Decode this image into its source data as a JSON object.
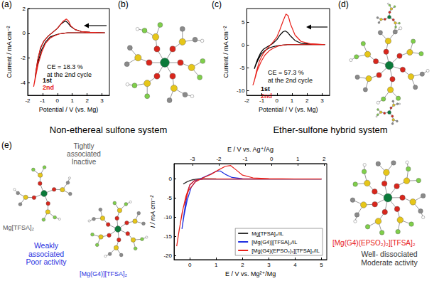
{
  "chart_data": [
    {
      "label": "(a)",
      "type": "line",
      "title": "Non-ethereal sulfone system",
      "x_label": "Potential / V (vs. Mg)",
      "y_label": "Current / mA cm⁻²",
      "xlim": [
        -2,
        3.5
      ],
      "xticks": [
        -2,
        -1,
        0,
        1,
        2,
        3
      ],
      "ylim": [
        -5,
        2
      ],
      "yticks": [
        -4,
        -2,
        0,
        2
      ],
      "grid": false,
      "annotations": [
        {
          "text": "CE = 18.3 %\nat the 2nd cycle",
          "color": "#000000"
        }
      ],
      "series": [
        {
          "name": "1st",
          "color": "#000000",
          "x": [
            3.2,
            2.5,
            2,
            1.5,
            1,
            0.7,
            0.4,
            0.1,
            -0.2,
            -0.5,
            -0.8,
            -1.05,
            -1.25,
            -1.4,
            -1.5,
            -1.45,
            -1.3,
            -1.1,
            -0.9,
            -0.6,
            -0.3,
            0,
            0.2,
            0.4,
            0.55,
            0.7,
            0.9,
            1.2,
            1.6,
            2.2,
            3.2
          ],
          "values": [
            0.05,
            0.05,
            0.05,
            0.05,
            0.05,
            0.05,
            0,
            -0.05,
            -0.15,
            -0.3,
            -0.7,
            -1.3,
            -2.1,
            -2.9,
            -3.6,
            -3.1,
            -2.0,
            -1.1,
            -0.6,
            -0.2,
            0.1,
            0.4,
            0.7,
            0.9,
            1.0,
            0.85,
            0.55,
            0.3,
            0.15,
            0.08,
            0.05
          ]
        },
        {
          "name": "2nd",
          "color": "#e8201a",
          "x": [
            3.2,
            2.5,
            2,
            1.5,
            1,
            0.7,
            0.4,
            0.1,
            -0.2,
            -0.5,
            -0.8,
            -1.05,
            -1.3,
            -1.45,
            -1.6,
            -1.5,
            -1.35,
            -1.15,
            -0.9,
            -0.6,
            -0.3,
            0,
            0.2,
            0.4,
            0.6,
            0.75,
            0.9,
            1.2,
            1.6,
            2.2,
            3.2
          ],
          "values": [
            0.05,
            0.05,
            0.05,
            0.05,
            0.05,
            0.05,
            0,
            -0.05,
            -0.2,
            -0.4,
            -0.8,
            -1.5,
            -2.5,
            -3.4,
            -4.3,
            -3.6,
            -2.3,
            -1.2,
            -0.6,
            -0.2,
            0.1,
            0.4,
            0.7,
            1.0,
            1.15,
            1.0,
            0.6,
            0.3,
            0.15,
            0.08,
            0.05
          ]
        }
      ]
    },
    {
      "label": "(c)",
      "type": "line",
      "title": "Ether-sulfone hybrid system",
      "x_label": "Potential / V (vs. Mg)",
      "y_label": "Current / mA cm⁻²",
      "xlim": [
        -2,
        3.5
      ],
      "xticks": [
        -2,
        -1,
        0,
        1,
        2,
        3
      ],
      "ylim": [
        -11,
        8
      ],
      "yticks": [
        -10,
        -5,
        0,
        5
      ],
      "grid": false,
      "annotations": [
        {
          "text": "CE = 57.3 %\nat the 2nd cycle",
          "color": "#000000"
        }
      ],
      "series": [
        {
          "name": "1st",
          "color": "#000000",
          "x": [
            3.2,
            2.5,
            2,
            1.5,
            1,
            0.7,
            0.4,
            0.1,
            -0.2,
            -0.5,
            -0.8,
            -1.05,
            -1.25,
            -1.4,
            -1.5,
            -1.45,
            -1.3,
            -1.1,
            -0.9,
            -0.6,
            -0.3,
            0,
            0.2,
            0.4,
            0.55,
            0.7,
            0.9,
            1.2,
            1.6,
            2.2,
            3.2
          ],
          "values": [
            0.1,
            0.1,
            0.1,
            0.1,
            0.1,
            0.1,
            0,
            -0.1,
            -0.3,
            -0.6,
            -1.2,
            -2.0,
            -3.2,
            -4.3,
            -5.2,
            -4.6,
            -3.2,
            -1.8,
            -0.9,
            -0.3,
            0.3,
            1.2,
            2.2,
            2.9,
            3.1,
            2.8,
            2.0,
            1.0,
            0.4,
            0.2,
            0.1
          ]
        },
        {
          "name": "2nd",
          "color": "#e8201a",
          "x": [
            3.2,
            2.5,
            2,
            1.5,
            1,
            0.7,
            0.4,
            0.1,
            -0.2,
            -0.5,
            -0.8,
            -1.05,
            -1.3,
            -1.45,
            -1.6,
            -1.5,
            -1.35,
            -1.15,
            -0.9,
            -0.6,
            -0.3,
            0,
            0.2,
            0.4,
            0.6,
            0.75,
            0.9,
            1.2,
            1.6,
            2.2,
            3.2
          ],
          "values": [
            0.1,
            0.1,
            0.1,
            0.1,
            0.1,
            0.1,
            0,
            -0.2,
            -0.6,
            -1.2,
            -2.2,
            -3.6,
            -5.5,
            -7.2,
            -8.8,
            -7.8,
            -5.6,
            -3.4,
            -1.8,
            -0.6,
            0.5,
            1.8,
            3.4,
            5.2,
            6.8,
            6.4,
            4.6,
            2.2,
            0.8,
            0.3,
            0.1
          ]
        }
      ]
    },
    {
      "label": "(e)",
      "type": "line",
      "x_label": "E / V vs. Mg²⁺/Mg",
      "x2_label": "E / V vs. Ag⁺/Ag",
      "y_label": "I / mA cm⁻²",
      "xlim": [
        -0.6,
        5.2
      ],
      "xticks": [
        0,
        1,
        2,
        3,
        4,
        5
      ],
      "x2lim": [
        -3.7,
        2.1
      ],
      "x2ticks": [
        -3,
        -2,
        -1,
        0,
        1,
        2
      ],
      "ylim": [
        -21,
        4
      ],
      "yticks": [
        -20,
        -15,
        -10,
        -5,
        0
      ],
      "grid": false,
      "legend": "lower right",
      "annotations": [
        {
          "text": "Tightly\nassociated\nInactive",
          "color": "#555555"
        },
        {
          "text": "Mg[TFSA]₂",
          "color": "#555555"
        },
        {
          "text": "Weakly\nassociated\nPoor activity",
          "color": "#1f2fe0"
        },
        {
          "text": "[Mg(G4)][TFSA]₂",
          "color": "#1f2fe0"
        },
        {
          "text": "[Mg(G4)(EPSO₂)₂][TFSA]₂",
          "color": "#e8201a"
        },
        {
          "text": "Well- dissociated\nModerate activity",
          "color": "#333333"
        }
      ],
      "series": [
        {
          "name": "Mg[TFSA]₂/IL",
          "color": "#333333",
          "x": [
            5,
            4,
            3,
            2,
            1,
            0.5,
            0.2,
            0,
            -0.15,
            -0.25,
            -0.1,
            0.1,
            0.4,
            1,
            2,
            3,
            4,
            5
          ],
          "values": [
            0,
            0,
            0,
            0,
            0,
            0,
            -0.1,
            -0.4,
            -0.9,
            -1.3,
            -0.7,
            -0.2,
            0.1,
            0.05,
            0,
            0,
            0,
            0
          ]
        },
        {
          "name": "[Mg(G4)][TFSA]₂/IL",
          "color": "#1f2fe0",
          "x": [
            5,
            4,
            3,
            2,
            1,
            0.5,
            0.2,
            0,
            -0.1,
            -0.2,
            -0.3,
            -0.22,
            -0.1,
            0.05,
            0.25,
            0.5,
            0.8,
            1.0,
            1.15,
            1.35,
            1.6,
            2,
            3,
            4,
            5
          ],
          "values": [
            0,
            0,
            0,
            0,
            0,
            0,
            -0.3,
            -1.5,
            -4,
            -8,
            -13,
            -9.5,
            -5.5,
            -2.2,
            -0.4,
            0.4,
            1.3,
            2.0,
            2.1,
            1.2,
            0.4,
            0.1,
            0,
            0,
            0
          ]
        },
        {
          "name": "[Mg(G4)(EPSO₂)₂][TFSA]₂/IL",
          "color": "#e8201a",
          "x": [
            5,
            4,
            3,
            2,
            1,
            0.5,
            0.2,
            0,
            -0.15,
            -0.3,
            -0.42,
            -0.5,
            -0.4,
            -0.25,
            -0.05,
            0.2,
            0.5,
            0.8,
            1.1,
            1.35,
            1.55,
            1.75,
            2.0,
            2.4,
            3,
            4,
            5
          ],
          "values": [
            0,
            0,
            0,
            0,
            0,
            0,
            -0.3,
            -1.5,
            -4.5,
            -9,
            -14,
            -17.5,
            -13,
            -7.5,
            -3,
            -0.8,
            0.3,
            1.2,
            2.4,
            3.3,
            3.5,
            2.4,
            1.0,
            0.3,
            0.1,
            0,
            0
          ]
        }
      ]
    }
  ],
  "structures": [
    {
      "label": "(b)"
    },
    {
      "label": "(d)"
    }
  ]
}
